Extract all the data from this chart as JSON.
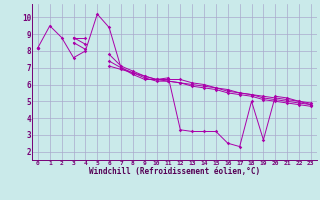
{
  "xlabel": "Windchill (Refroidissement éolien,°C)",
  "bg_color": "#caeaea",
  "grid_color": "#aaaacc",
  "line_color": "#aa00aa",
  "xlim": [
    -0.5,
    23.5
  ],
  "ylim": [
    1.5,
    10.8
  ],
  "xticks": [
    0,
    1,
    2,
    3,
    4,
    5,
    6,
    7,
    8,
    9,
    10,
    11,
    12,
    13,
    14,
    15,
    16,
    17,
    18,
    19,
    20,
    21,
    22,
    23
  ],
  "yticks": [
    2,
    3,
    4,
    5,
    6,
    7,
    8,
    9,
    10
  ],
  "series": [
    [
      8.2,
      9.5,
      8.8,
      7.6,
      8.0,
      10.2,
      9.4,
      7.0,
      6.6,
      6.3,
      6.3,
      6.4,
      3.3,
      3.2,
      3.2,
      3.2,
      2.5,
      2.3,
      5.0,
      2.7,
      5.3,
      5.2,
      5.0,
      4.8
    ],
    [
      8.2,
      null,
      null,
      8.8,
      8.8,
      null,
      7.8,
      7.1,
      6.8,
      6.5,
      6.3,
      6.3,
      6.3,
      6.1,
      6.0,
      5.8,
      5.7,
      5.5,
      5.4,
      5.2,
      5.1,
      5.0,
      4.9,
      4.8
    ],
    [
      8.2,
      null,
      null,
      8.8,
      8.4,
      null,
      7.4,
      7.0,
      6.7,
      6.4,
      6.2,
      6.2,
      6.1,
      6.0,
      5.9,
      5.8,
      5.6,
      5.5,
      5.4,
      5.3,
      5.2,
      5.1,
      5.0,
      4.9
    ],
    [
      8.2,
      null,
      null,
      8.5,
      8.1,
      null,
      7.1,
      6.9,
      6.7,
      6.5,
      6.3,
      6.2,
      6.1,
      5.9,
      5.8,
      5.7,
      5.5,
      5.4,
      5.3,
      5.1,
      5.0,
      4.9,
      4.8,
      4.7
    ]
  ]
}
